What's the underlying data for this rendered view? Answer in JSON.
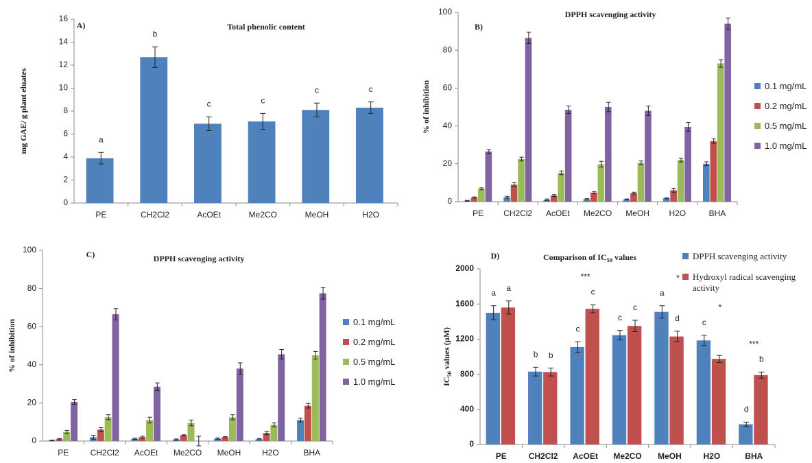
{
  "chart_data": [
    {
      "type": "bar",
      "panel": "A)",
      "title": "Total phenolic content",
      "ylabel": "mg GAE/ g plant  eluates",
      "categories": [
        "PE",
        "CH2Cl2",
        "AcOEt",
        "Me2CO",
        "MeOH",
        "H2O"
      ],
      "series": [
        {
          "color": "#4f81bd",
          "values": [
            3.9,
            12.7,
            6.9,
            7.1,
            8.1,
            8.3
          ],
          "errors": [
            0.5,
            0.9,
            0.6,
            0.7,
            0.6,
            0.5
          ],
          "labels": [
            "a",
            "b",
            "c",
            "c",
            "c",
            "c"
          ]
        }
      ],
      "ylim": [
        0,
        16
      ],
      "yticks": [
        0,
        2,
        4,
        6,
        8,
        10,
        12,
        14,
        16
      ]
    },
    {
      "type": "bar",
      "panel": "B)",
      "title": "DPPH scavenging activity",
      "ylabel": "% of inhibition",
      "categories": [
        "PE",
        "CH2Cl2",
        "AcOEt",
        "Me2CO",
        "MeOH",
        "H2O",
        "BHA"
      ],
      "series": [
        {
          "name": "0.1 mg/mL",
          "color": "#4f81bd",
          "values": [
            0.5,
            2.3,
            1.0,
            1.3,
            1.2,
            1.8,
            20
          ],
          "errors": [
            0.2,
            0.5,
            0.4,
            0.3,
            0.2,
            0.3,
            1
          ]
        },
        {
          "name": "0.2 mg/mL",
          "color": "#c0504d",
          "values": [
            2.2,
            9,
            3.2,
            4.8,
            4.5,
            6,
            32
          ],
          "errors": [
            0.3,
            1,
            0.5,
            0.5,
            0.5,
            1,
            1.2
          ]
        },
        {
          "name": "0.5 mg/mL",
          "color": "#9bbb59",
          "values": [
            6.8,
            22.5,
            15.2,
            19.8,
            20.5,
            22,
            73
          ],
          "errors": [
            0.5,
            1,
            1,
            1.5,
            1,
            1,
            2
          ]
        },
        {
          "name": "1.0 mg/mL",
          "color": "#8064a2",
          "values": [
            26.5,
            86.5,
            48.5,
            50,
            48,
            39.5,
            94
          ],
          "errors": [
            1,
            3,
            2,
            2.5,
            2.5,
            2.3,
            3
          ]
        }
      ],
      "ylim": [
        0,
        100
      ],
      "yticks": [
        0,
        20,
        40,
        60,
        80,
        100
      ]
    },
    {
      "type": "bar",
      "panel": "C)",
      "title": "DPPH scavenging activity",
      "ylabel": "% of inhibition",
      "categories": [
        "PE",
        "CH2Cl2",
        "AcOEt",
        "Me2CO",
        "MeOH",
        "H2O",
        "BHA"
      ],
      "series": [
        {
          "name": "0.1 mg/mL",
          "color": "#4f81bd",
          "values": [
            0.3,
            2,
            1.2,
            0.8,
            1.3,
            1,
            11
          ],
          "errors": [
            0.2,
            1,
            0.3,
            0.3,
            0.3,
            0.3,
            1
          ]
        },
        {
          "name": "0.2 mg/mL",
          "color": "#c0504d",
          "values": [
            1,
            6,
            2,
            3,
            2,
            4.2,
            18.5
          ],
          "errors": [
            0.3,
            1,
            0.5,
            0.3,
            0.3,
            0.8,
            1.2
          ]
        },
        {
          "name": "0.5 mg/mL",
          "color": "#9bbb59",
          "values": [
            4.8,
            12.5,
            11,
            9.5,
            12.5,
            8.5,
            45
          ],
          "errors": [
            0.8,
            1.3,
            1.5,
            1.5,
            1.3,
            1,
            2
          ]
        },
        {
          "name": "1.0 mg/mL",
          "color": "#8064a2",
          "values": [
            20.5,
            66.5,
            28.5,
            0,
            38,
            45.5,
            77.5
          ],
          "errors": [
            1.2,
            3,
            2,
            2.5,
            3,
            2.5,
            3
          ]
        }
      ],
      "ylim": [
        0,
        100
      ],
      "yticks": [
        0,
        20,
        40,
        60,
        80,
        100
      ]
    },
    {
      "type": "bar",
      "panel": "D)",
      "title": [
        "Comparison of IC",
        "50",
        " values"
      ],
      "ylabel": [
        "IC",
        "50",
        " values (μM)"
      ],
      "categories": [
        "PE",
        "CH2Cl2",
        "AcOEt",
        "Me2CO",
        "MeOH",
        "H2O",
        "BHA"
      ],
      "series": [
        {
          "name": "DPPH scavenging activity",
          "color": "#4f81bd",
          "values": [
            1500,
            830,
            1110,
            1245,
            1510,
            1185,
            230
          ],
          "errors": [
            80,
            50,
            60,
            55,
            70,
            60,
            25
          ],
          "labels": [
            "a",
            "b",
            "c",
            "c",
            "a",
            "c",
            "d"
          ]
        },
        {
          "name": "Hydroxyl radical scavenging activity",
          "color": "#c0504d",
          "values": [
            1560,
            825,
            1545,
            1350,
            1230,
            975,
            790
          ],
          "errors": [
            75,
            45,
            45,
            65,
            60,
            40,
            35
          ],
          "labels": [
            "a",
            "b",
            "c",
            "c",
            "d",
            null,
            "b"
          ]
        }
      ],
      "annotations": [
        null,
        null,
        "***",
        null,
        "*",
        "*",
        "***"
      ],
      "ylim": [
        0,
        2000
      ],
      "yticks": [
        0,
        400,
        800,
        1200,
        1600,
        2000
      ]
    }
  ]
}
